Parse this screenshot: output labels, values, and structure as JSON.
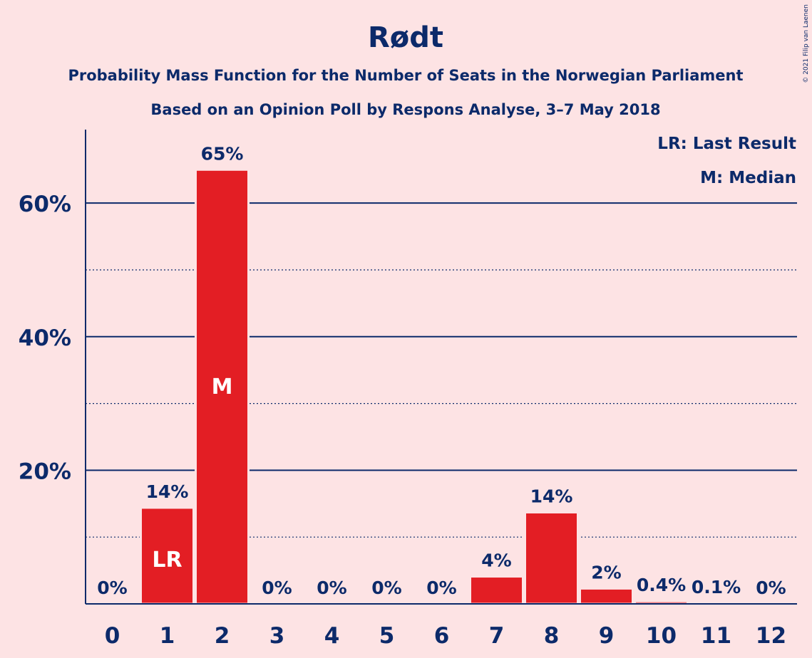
{
  "title": "Rødt",
  "subtitle1": "Probability Mass Function for the Number of Seats in the Norwegian Parliament",
  "subtitle2": "Based on an Opinion Poll by Respons Analyse, 3–7 May 2018",
  "legend": {
    "last_result": "LR: Last Result",
    "median": "M: Median"
  },
  "copyright": "© 2021 Filip van Laenen",
  "colors": {
    "background": "#FDE3E4",
    "bar": "#E31E24",
    "text": "#0C2A6A"
  },
  "chart_data": {
    "type": "bar",
    "categories": [
      "0",
      "1",
      "2",
      "3",
      "4",
      "5",
      "6",
      "7",
      "8",
      "9",
      "10",
      "11",
      "12"
    ],
    "values": [
      0,
      14.4,
      65,
      0,
      0,
      0,
      0,
      4.1,
      13.7,
      2.3,
      0.4,
      0.1,
      0
    ],
    "value_labels": [
      "0%",
      "14%",
      "65%",
      "0%",
      "0%",
      "0%",
      "0%",
      "4%",
      "14%",
      "2%",
      "0.4%",
      "0.1%",
      "0%"
    ],
    "in_bar_labels": {
      "1": "LR",
      "2": "M"
    },
    "ylim": [
      0,
      71
    ],
    "yticks": [
      20,
      40,
      60
    ],
    "ytick_labels": [
      "20%",
      "40%",
      "60%"
    ],
    "minor_gridlines": [
      10,
      30,
      50
    ],
    "grid": true,
    "legend_position": "top-right"
  }
}
